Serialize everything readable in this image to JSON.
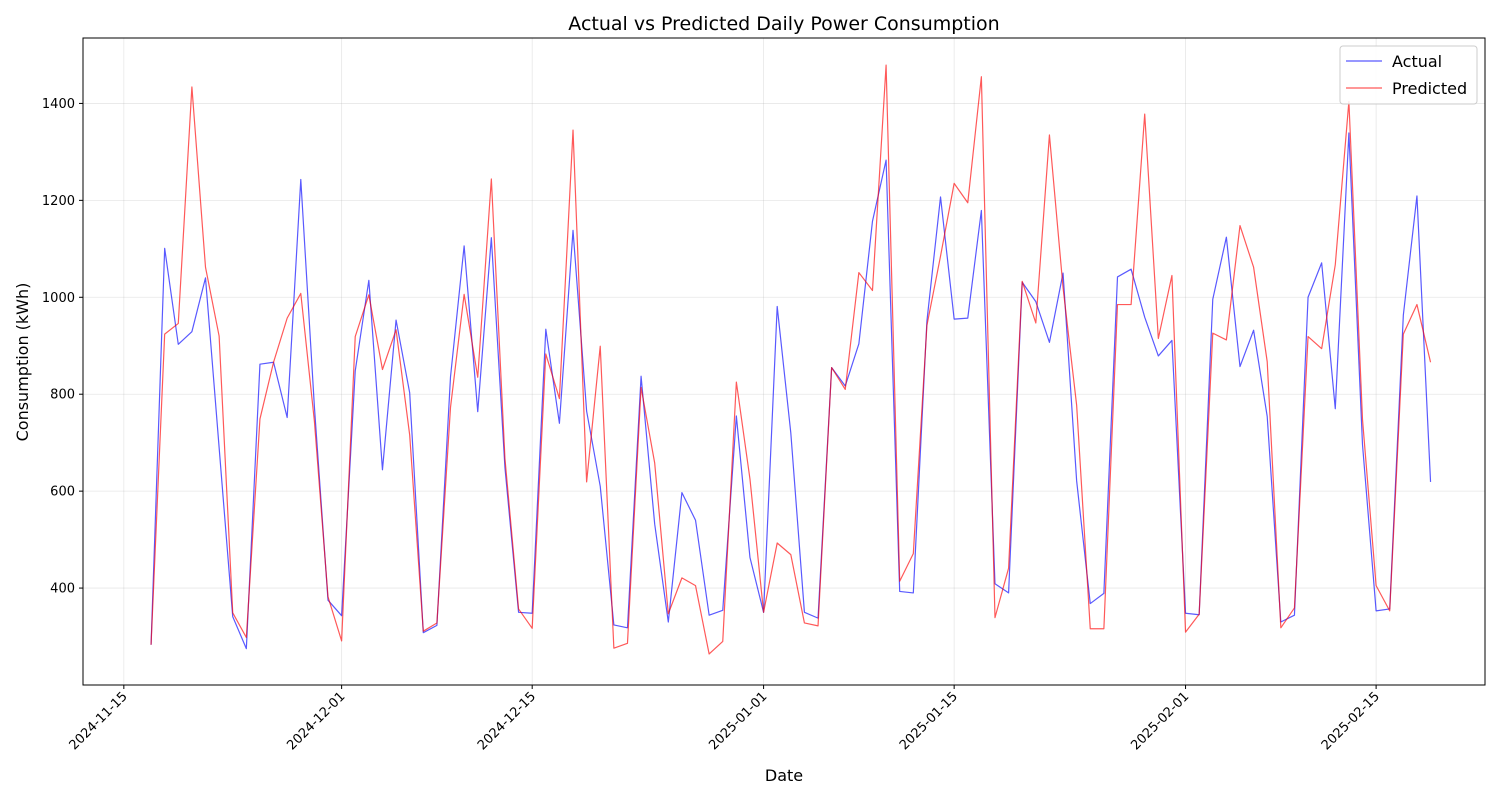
{
  "chart_data": {
    "type": "line",
    "title": "Actual vs Predicted Daily Power Consumption",
    "xlabel": "Date",
    "ylabel": "Consumption (kWh)",
    "x_start": "2024-11-17",
    "xlim": [
      "2024-11-12",
      "2025-02-23"
    ],
    "ylim": [
      200,
      1535
    ],
    "xticks": [
      "2024-11-15",
      "2024-12-01",
      "2024-12-15",
      "2025-01-01",
      "2025-01-15",
      "2025-02-01",
      "2025-02-15"
    ],
    "yticks": [
      400,
      600,
      800,
      1000,
      1200,
      1400
    ],
    "grid": true,
    "legend": "upper-right",
    "series": [
      {
        "name": "Actual",
        "color": "#0000ff",
        "values": [
          283,
          1101,
          903,
          929,
          1040,
          690,
          341,
          275,
          862,
          866,
          752,
          1243,
          774,
          375,
          343,
          848,
          1035,
          644,
          953,
          803,
          308,
          323,
          836,
          1106,
          764,
          1123,
          648,
          350,
          348,
          934,
          740,
          1138,
          765,
          610,
          324,
          318,
          837,
          532,
          330,
          597,
          540,
          344,
          354,
          755,
          463,
          350,
          981,
          720,
          350,
          338,
          855,
          817,
          904,
          1157,
          1283,
          393,
          390,
          951,
          1207,
          955,
          957,
          1179,
          409,
          390,
          1031,
          991,
          907,
          1050,
          621,
          368,
          389,
          1042,
          1058,
          959,
          879,
          911,
          348,
          345,
          996,
          1124,
          857,
          932,
          754,
          330,
          344,
          1000,
          1071,
          770,
          1339,
          696,
          353,
          357,
          963,
          1209,
          619
        ]
      },
      {
        "name": "Predicted",
        "color": "#ff0000",
        "values": [
          283,
          924,
          946,
          1434,
          1062,
          920,
          349,
          298,
          749,
          866,
          957,
          1008,
          744,
          382,
          291,
          919,
          1005,
          851,
          933,
          716,
          311,
          328,
          773,
          1006,
          835,
          1244,
          667,
          357,
          317,
          883,
          791,
          1345,
          619,
          899,
          276,
          286,
          814,
          658,
          347,
          421,
          405,
          264,
          290,
          825,
          625,
          350,
          493,
          469,
          328,
          322,
          855,
          810,
          1051,
          1014,
          1479,
          414,
          471,
          942,
          1085,
          1235,
          1195,
          1455,
          339,
          441,
          1033,
          947,
          1335,
          1020,
          777,
          316,
          316,
          985,
          985,
          1378,
          915,
          1045,
          309,
          346,
          926,
          912,
          1148,
          1062,
          867,
          318,
          359,
          919,
          894,
          1067,
          1404,
          748,
          405,
          353,
          924,
          985,
          866
        ]
      }
    ]
  }
}
